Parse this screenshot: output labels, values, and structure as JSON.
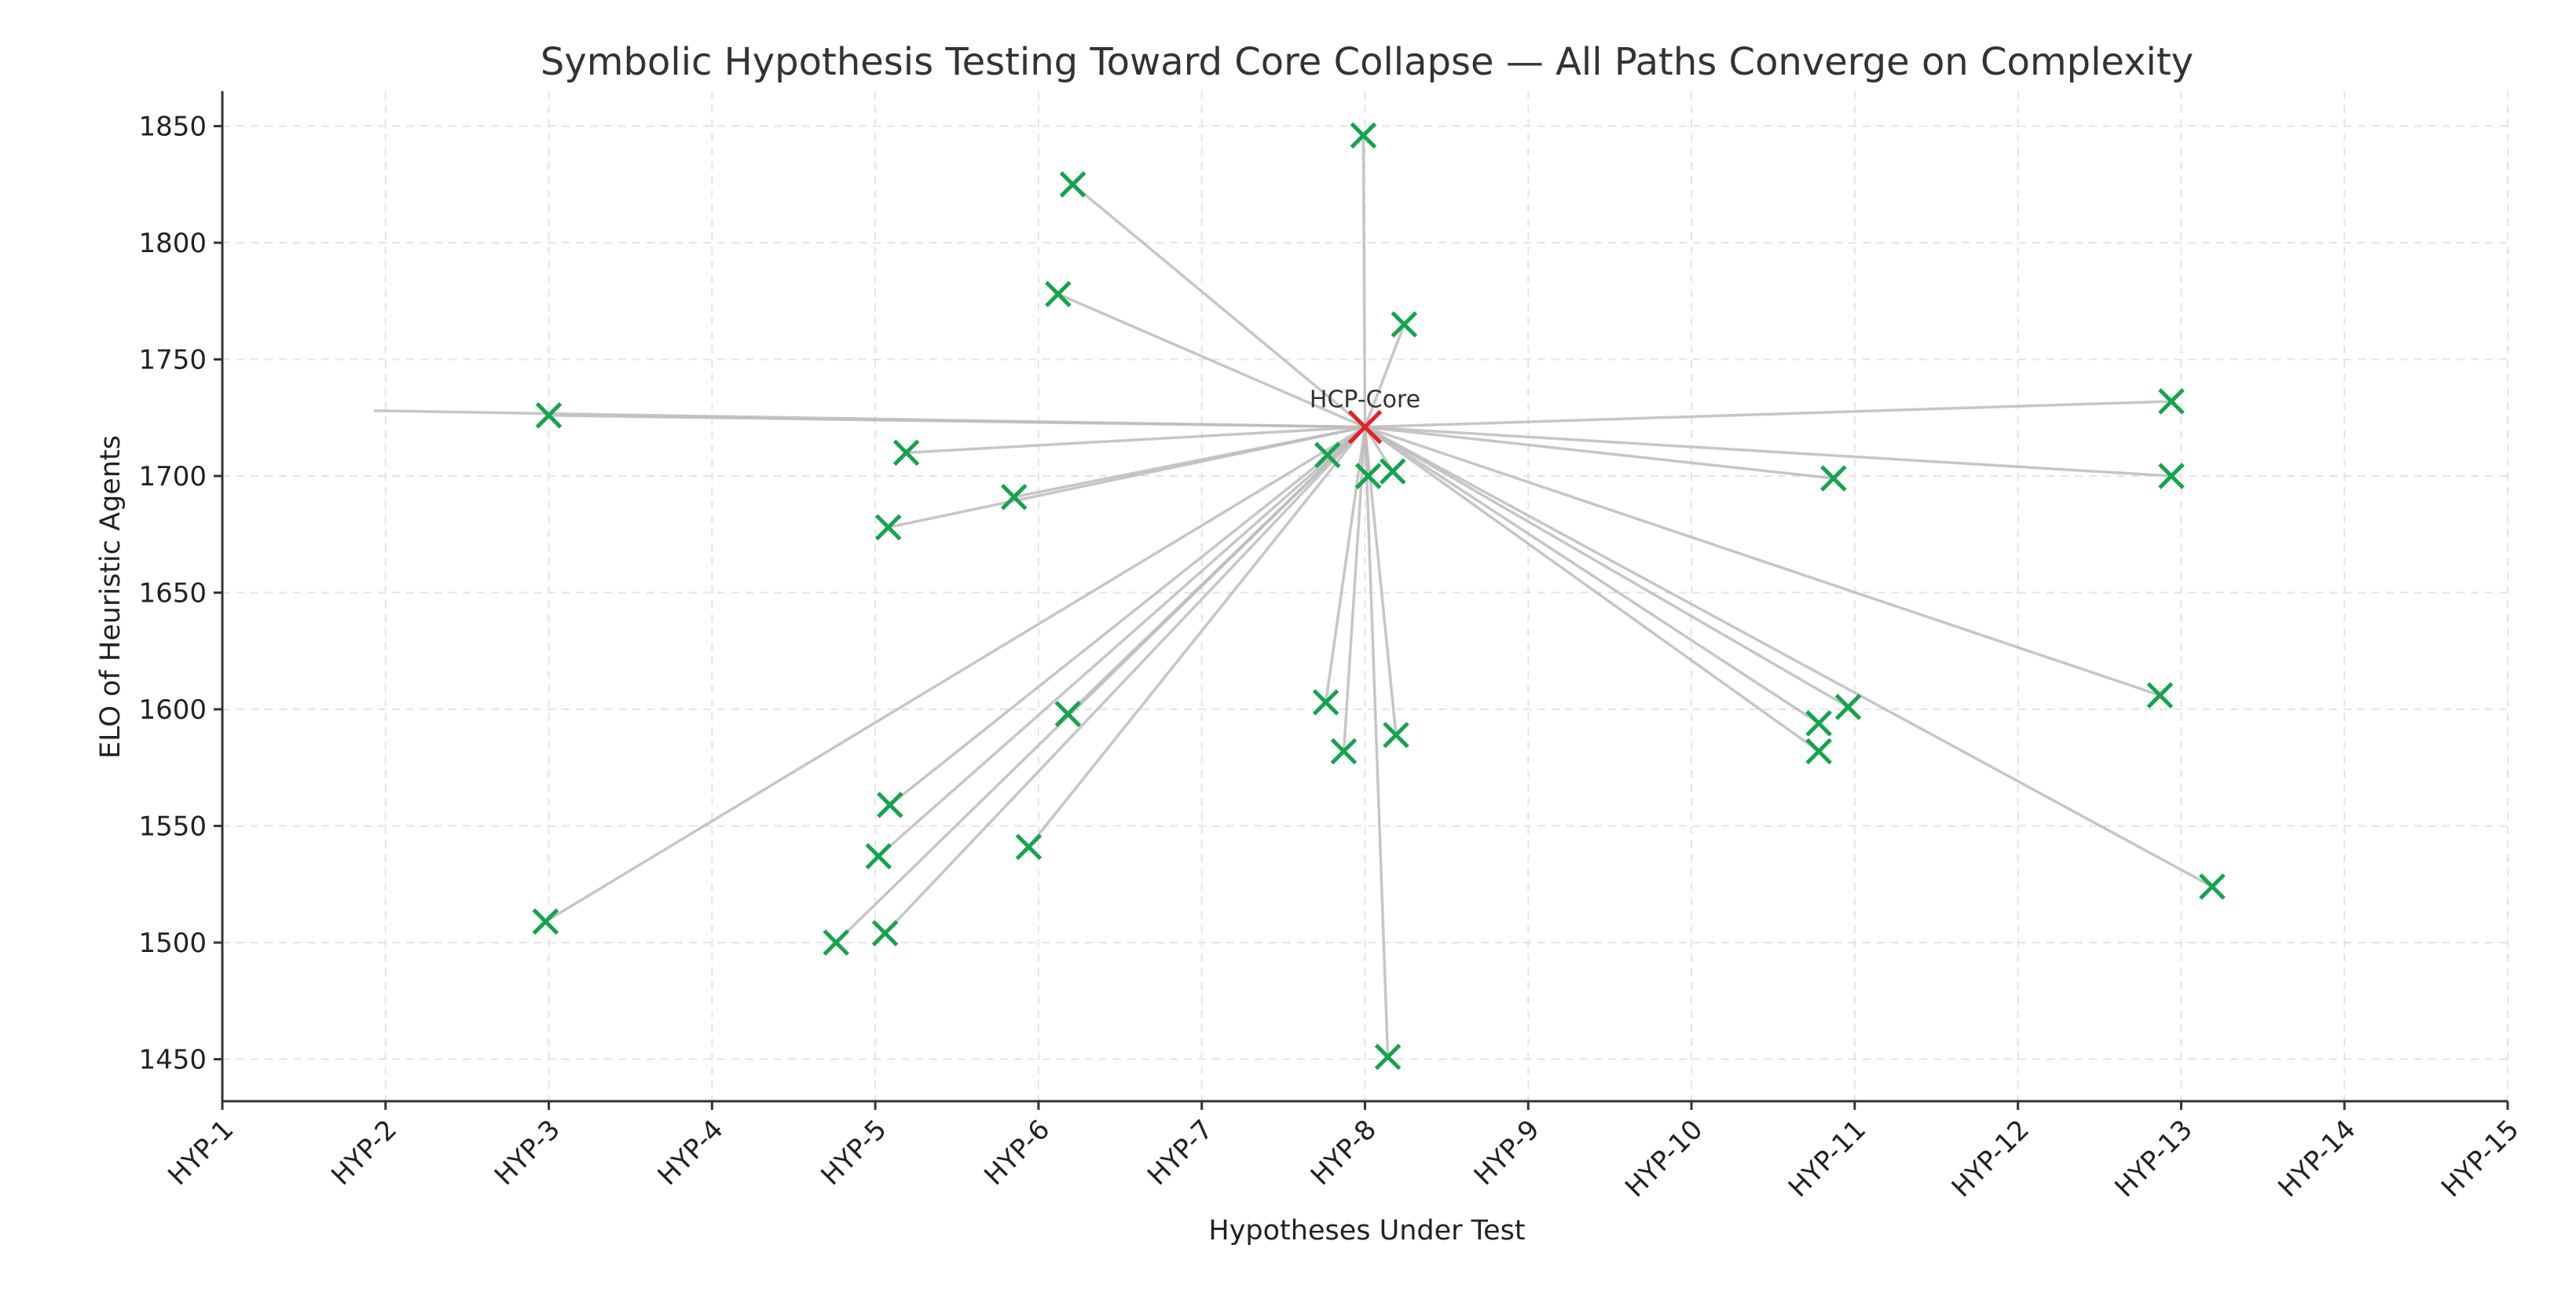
{
  "chart_data": {
    "type": "scatter",
    "title": "Symbolic Hypothesis Testing Toward Core Collapse — All Paths Converge on Complexity",
    "xlabel": "Hypotheses Under Test",
    "ylabel": "ELO of Heuristic Agents",
    "categories": [
      "HYP-1",
      "HYP-2",
      "HYP-3",
      "HYP-4",
      "HYP-5",
      "HYP-6",
      "HYP-7",
      "HYP-8",
      "HYP-9",
      "HYP-10",
      "HYP-11",
      "HYP-12",
      "HYP-13",
      "HYP-14",
      "HYP-15"
    ],
    "xlim": [
      1,
      15
    ],
    "ylim": [
      1432,
      1865
    ],
    "yticks": [
      1450,
      1500,
      1550,
      1600,
      1650,
      1700,
      1750,
      1800,
      1850
    ],
    "grid": true,
    "core": {
      "label": "HCP-Core",
      "x": 8.0,
      "y": 1721,
      "color": "#e02424"
    },
    "marker_color": "#14a44d",
    "edge_color": "#bdbdbd",
    "points": [
      {
        "x": 3.0,
        "y": 1726
      },
      {
        "x": 2.98,
        "y": 1509
      },
      {
        "x": 4.76,
        "y": 1500
      },
      {
        "x": 5.06,
        "y": 1504
      },
      {
        "x": 5.02,
        "y": 1537
      },
      {
        "x": 5.09,
        "y": 1559
      },
      {
        "x": 5.08,
        "y": 1678
      },
      {
        "x": 5.19,
        "y": 1710
      },
      {
        "x": 5.85,
        "y": 1691
      },
      {
        "x": 5.94,
        "y": 1541
      },
      {
        "x": 6.18,
        "y": 1598
      },
      {
        "x": 6.12,
        "y": 1778
      },
      {
        "x": 6.21,
        "y": 1825
      },
      {
        "x": 7.99,
        "y": 1846
      },
      {
        "x": 8.24,
        "y": 1765
      },
      {
        "x": 7.77,
        "y": 1709
      },
      {
        "x": 8.02,
        "y": 1700
      },
      {
        "x": 8.17,
        "y": 1702
      },
      {
        "x": 7.76,
        "y": 1603
      },
      {
        "x": 7.87,
        "y": 1582
      },
      {
        "x": 8.19,
        "y": 1589
      },
      {
        "x": 8.14,
        "y": 1451
      },
      {
        "x": 10.87,
        "y": 1699
      },
      {
        "x": 10.78,
        "y": 1594
      },
      {
        "x": 10.96,
        "y": 1601
      },
      {
        "x": 10.78,
        "y": 1582
      },
      {
        "x": 12.94,
        "y": 1732
      },
      {
        "x": 12.94,
        "y": 1700
      },
      {
        "x": 12.87,
        "y": 1606
      },
      {
        "x": 13.19,
        "y": 1524
      }
    ]
  }
}
